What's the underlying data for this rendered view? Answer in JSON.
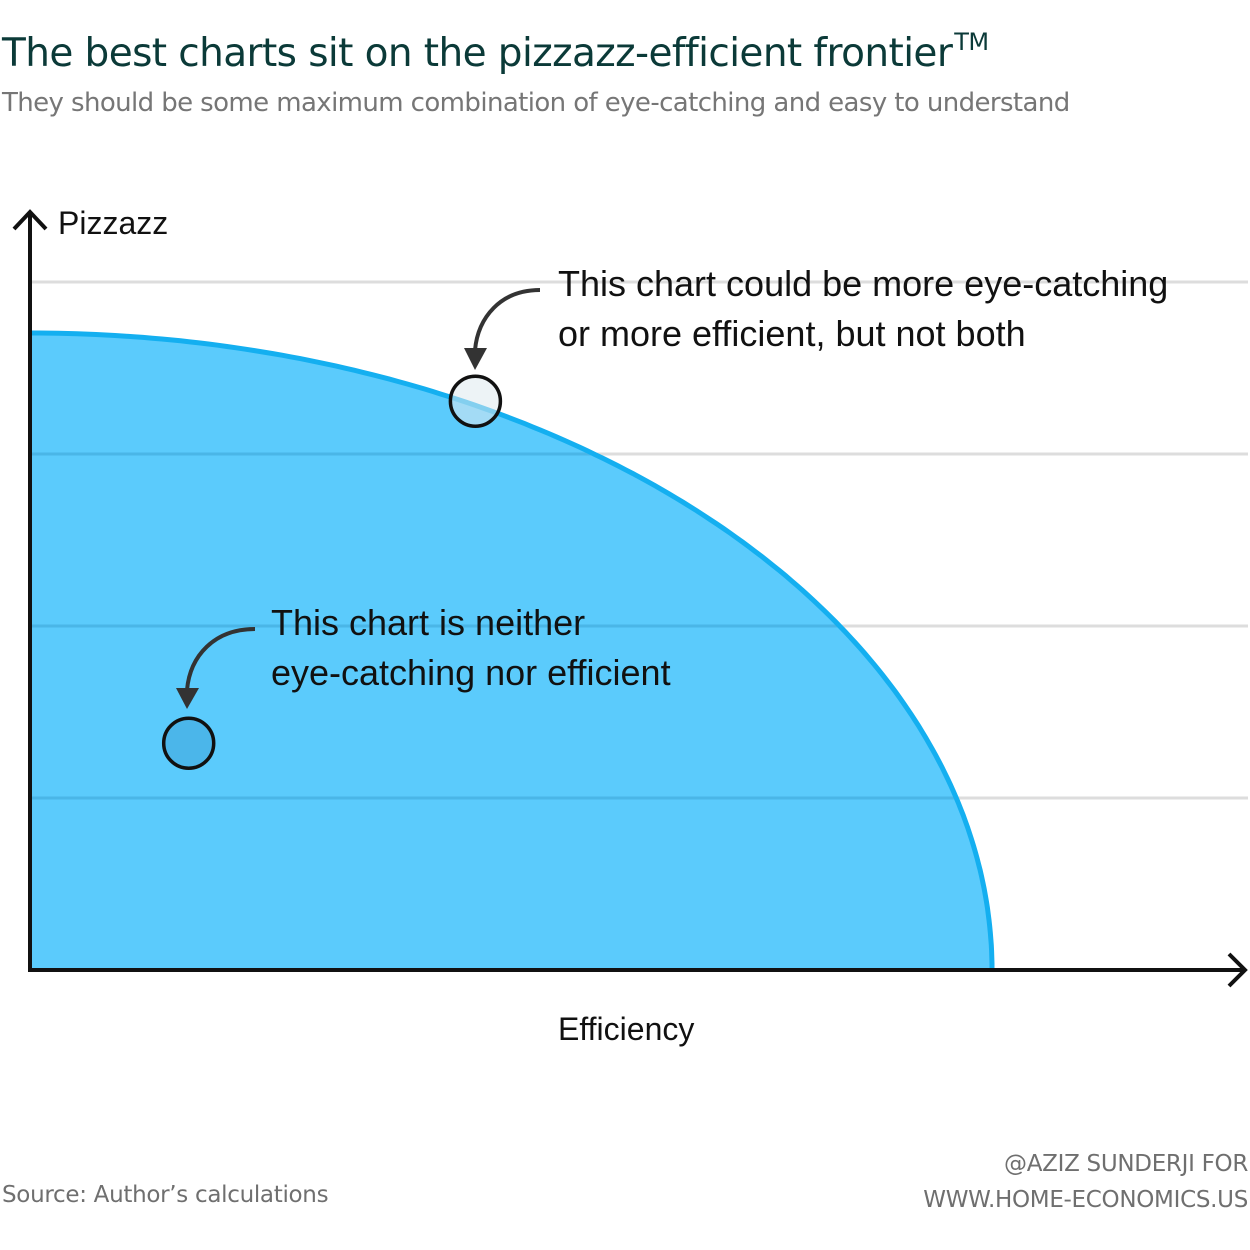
{
  "header": {
    "title": "The best charts sit on the pizzazz-efficient frontier",
    "title_mark": "TM",
    "subtitle": "They should be some maximum combination of eye-catching and easy to understand"
  },
  "chart_data": {
    "type": "area",
    "title": "The best charts sit on the pizzazz-efficient frontier",
    "xlabel": "Efficiency",
    "ylabel": "Pizzazz",
    "xlim": [
      0,
      1.26
    ],
    "ylim": [
      0,
      1.08
    ],
    "grid": true,
    "gridlines_y": [
      0.27,
      0.54,
      0.81,
      1.08
    ],
    "frontier": {
      "max_x": 1.0,
      "max_y": 1.0,
      "shape": "quarter-ellipse"
    },
    "points": [
      {
        "label": "This chart could be more eye-catching or more efficient, but not both",
        "x": 0.463,
        "y": 0.893,
        "location": "on-frontier"
      },
      {
        "label": "This chart is neither eye-catching nor efficient",
        "x": 0.165,
        "y": 0.356,
        "location": "inside"
      }
    ],
    "colors": {
      "fill": "#5bcbfc",
      "edge": "#14aff0",
      "grid": "#dddddd",
      "axis": "#111111",
      "point_on_frontier": "#dfe9ee",
      "point_inside": "#4bb6ea"
    }
  },
  "annotations": {
    "upper": {
      "line1": "This chart could be more eye-catching",
      "line2": "or more efficient, but not both"
    },
    "lower": {
      "line1": "This chart is neither",
      "line2": "eye-catching nor efficient"
    }
  },
  "footer": {
    "source": "Source: Author’s calculations",
    "credit_line1": "@AZIZ SUNDERJI FOR",
    "credit_line2": "WWW.HOME-ECONOMICS.US"
  }
}
